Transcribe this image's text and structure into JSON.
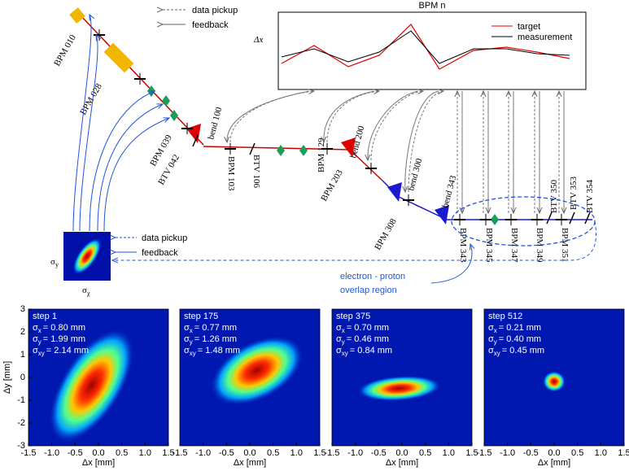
{
  "diagram": {
    "legend_top": {
      "pickup": "data pickup",
      "feedback": "feedback"
    },
    "bpm_plot": {
      "title": "BPM n",
      "ylabel": "Δx",
      "series": [
        "target",
        "measurement"
      ]
    },
    "elements": [
      "BPM 010",
      "BPM 028",
      "BPM 039",
      "BTV 042",
      "bend 100",
      "BPM 103",
      "BTV 106",
      "BPM 129",
      "bend 200",
      "BPM 203",
      "bend 300",
      "BPM 308",
      "bend 343",
      "BPM 343",
      "BPM 345",
      "BPM 347",
      "BPM 349",
      "BPM 351",
      "BTV 350",
      "BTV 353",
      "BTV 354"
    ],
    "camera": {
      "symbol": "σ",
      "x_sub": "χ",
      "y_sub": "y"
    },
    "legend_bottom": {
      "pickup": "data pickup",
      "feedback": "feedback"
    },
    "overlap_label": [
      "electron - proton",
      "overlap region"
    ]
  },
  "panels": [
    {
      "step": "step 1",
      "values": [
        "= 0.80 mm",
        "= 1.99 mm",
        "= 2.14 mm"
      ]
    },
    {
      "step": "step 175",
      "values": [
        "= 0.77 mm",
        "= 1.26 mm",
        "= 1.48 mm"
      ]
    },
    {
      "step": "step 375",
      "values": [
        "= 0.70 mm",
        "= 0.46 mm",
        "= 0.84 mm"
      ]
    },
    {
      "step": "step 512",
      "values": [
        "= 0.21 mm",
        "= 0.40 mm",
        "= 0.45 mm"
      ]
    }
  ],
  "axes": {
    "symbol": "σ",
    "subs": [
      "x",
      "y",
      "xy"
    ],
    "xlabel": "Δx [mm]",
    "ylabel": "Δy [mm]",
    "xticks": [
      "-1.5",
      "-1.0",
      "-0.5",
      "0.0",
      "0.5",
      "1.0",
      "1.5"
    ],
    "yticks": [
      "3",
      "2",
      "1",
      "0",
      "-1",
      "-2",
      "-3"
    ]
  }
}
